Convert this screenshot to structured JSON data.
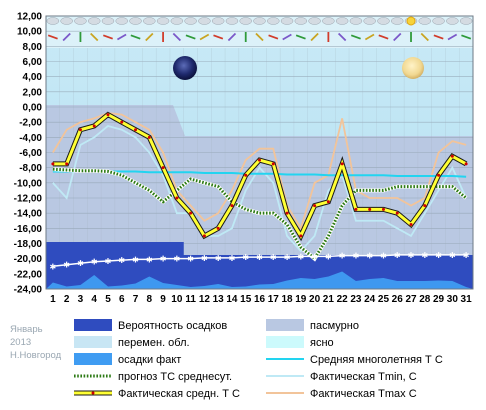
{
  "caption": {
    "month": "Январь",
    "year": "2013",
    "city": "Н.Новгород"
  },
  "legend": [
    {
      "label": "Вероятность осадков",
      "kind": "box",
      "color": "#2f4cbf"
    },
    {
      "label": "пасмурно",
      "kind": "box",
      "color": "#b9c8e2"
    },
    {
      "label": "перемен. обл.",
      "kind": "box",
      "color": "#c8e6f4"
    },
    {
      "label": "ясно",
      "kind": "box",
      "color": "#ccfafc"
    },
    {
      "label": "осадки факт",
      "kind": "box",
      "color": "#3f9cf2"
    },
    {
      "label": "Средняя многолетняя Т С",
      "kind": "line",
      "color": "#22d4f0"
    },
    {
      "label": "прогноз ТС среднесут.",
      "kind": "dotted",
      "color": "#2c7a14"
    },
    {
      "label": "Фактическая Tmin, C",
      "kind": "line",
      "color": "#bfe9f5"
    },
    {
      "label": "Фактическая средн. Т С",
      "kind": "mean",
      "color": "#ffff33"
    },
    {
      "label": "Фактическая Tmax C",
      "kind": "line",
      "color": "#f2c49a"
    }
  ],
  "chart_data": {
    "type": "line",
    "x": [
      1,
      2,
      3,
      4,
      5,
      6,
      7,
      8,
      9,
      10,
      11,
      12,
      13,
      14,
      15,
      16,
      17,
      18,
      19,
      20,
      21,
      22,
      23,
      24,
      25,
      26,
      27,
      28,
      29,
      30,
      31
    ],
    "ylim": [
      -24,
      12
    ],
    "yticks": [
      "12,00",
      "10,00",
      "8,00",
      "6,00",
      "4,00",
      "2,00",
      "0,00",
      "-2,00",
      "-4,00",
      "-6,00",
      "-8,00",
      "-10,00",
      "-12,00",
      "-14,00",
      "-16,00",
      "-18,00",
      "-20,00",
      "-22,00",
      "-24,00"
    ],
    "series": [
      {
        "name": "Фактическая Tmax C",
        "color": "#f2c49a",
        "values": [
          -6,
          -3,
          -2,
          -1.5,
          -0.8,
          -1,
          -2,
          -3,
          -6,
          -11,
          -13,
          -15,
          -14,
          -11,
          -7,
          -5.5,
          -5.5,
          -13,
          -16,
          -10,
          -9,
          -1.5,
          -11,
          -12,
          -12,
          -12,
          -13,
          -12,
          -6,
          -4.5,
          -5
        ]
      },
      {
        "name": "Фактическая Tmin, C",
        "color": "#bfe9f5",
        "values": [
          -10,
          -12,
          -5,
          -4,
          -2.5,
          -3,
          -4,
          -6,
          -9,
          -14,
          -14,
          -17,
          -17,
          -16,
          -11,
          -8,
          -10,
          -17,
          -19,
          -17,
          -11,
          -9,
          -15,
          -15,
          -15,
          -16,
          -17,
          -14,
          -11,
          -8,
          -12
        ]
      },
      {
        "name": "Средняя многолетняя Т С",
        "color": "#22d4f0",
        "values": [
          -8.5,
          -8.5,
          -8.5,
          -8.5,
          -8.5,
          -8.5,
          -8.5,
          -8.6,
          -8.6,
          -8.6,
          -8.6,
          -8.7,
          -8.7,
          -8.7,
          -8.8,
          -8.8,
          -8.8,
          -8.9,
          -8.9,
          -8.9,
          -9,
          -9,
          -9,
          -9,
          -9,
          -9.1,
          -9.1,
          -9.1,
          -9.1,
          -9.1,
          -9.2
        ]
      },
      {
        "name": "прогноз ТС среднесут.",
        "color": "#2c7a14",
        "values": [
          -8.2,
          -8.3,
          -8.4,
          -8.4,
          -8.5,
          -9,
          -10,
          -11,
          -12.5,
          -11,
          -9.5,
          -10,
          -10.5,
          -12.5,
          -13.5,
          -14,
          -14,
          -15.5,
          -18.5,
          -20,
          -17,
          -13,
          -11,
          -11,
          -11,
          -10.5,
          -10.5,
          -10.5,
          -10.5,
          -10.5,
          -12
        ]
      },
      {
        "name": "Фактическая средн. Т С",
        "color": "#ffff33",
        "values": [
          -7.5,
          -7.5,
          -3,
          -2.5,
          -1,
          -2,
          -3,
          -4,
          -8,
          -12,
          -14,
          -17,
          -16,
          -13,
          -9,
          -7,
          -7.5,
          -14,
          -17,
          -13,
          -12.5,
          -7.5,
          -13.5,
          -13.5,
          -13.5,
          -14,
          -15.5,
          -13,
          -9,
          -6.5,
          -7.5
        ]
      }
    ],
    "precip_probability": [
      19,
      20,
      20,
      20,
      20,
      20,
      20,
      20,
      20,
      20,
      20,
      20,
      20,
      20,
      20,
      20,
      20,
      20,
      20,
      20,
      20,
      20,
      20,
      20,
      20,
      20,
      20,
      20,
      20,
      20,
      20
    ],
    "precip_fact": [
      1.3,
      0.5,
      0.8,
      2.8,
      0.5,
      0.7,
      1.1,
      2.5,
      1.2,
      0.8,
      0.4,
      0.6,
      1,
      0.4,
      0.5,
      0.9,
      1,
      1.7,
      2.2,
      2,
      2.5,
      3.5,
      1.6,
      2,
      2.2,
      1.6,
      1.6,
      1.6,
      1.7,
      1.6,
      0.4
    ],
    "precip_trend": [
      -21,
      -20.8,
      -20.6,
      -20.4,
      -20.3,
      -20.2,
      -20.1,
      -20.1,
      -20,
      -20,
      -20,
      -19.9,
      -19.9,
      -19.9,
      -19.8,
      -19.8,
      -19.8,
      -19.8,
      -19.7,
      -19.7,
      -19.7,
      -19.6,
      -19.6,
      -19.6,
      -19.6,
      -19.5,
      -19.5,
      -19.5,
      -19.5,
      -19.5,
      -19.5
    ],
    "cloud_cover": {
      "bands": [
        "пасмурно",
        "перемен. обл.",
        "ясно"
      ]
    },
    "grid": true
  }
}
